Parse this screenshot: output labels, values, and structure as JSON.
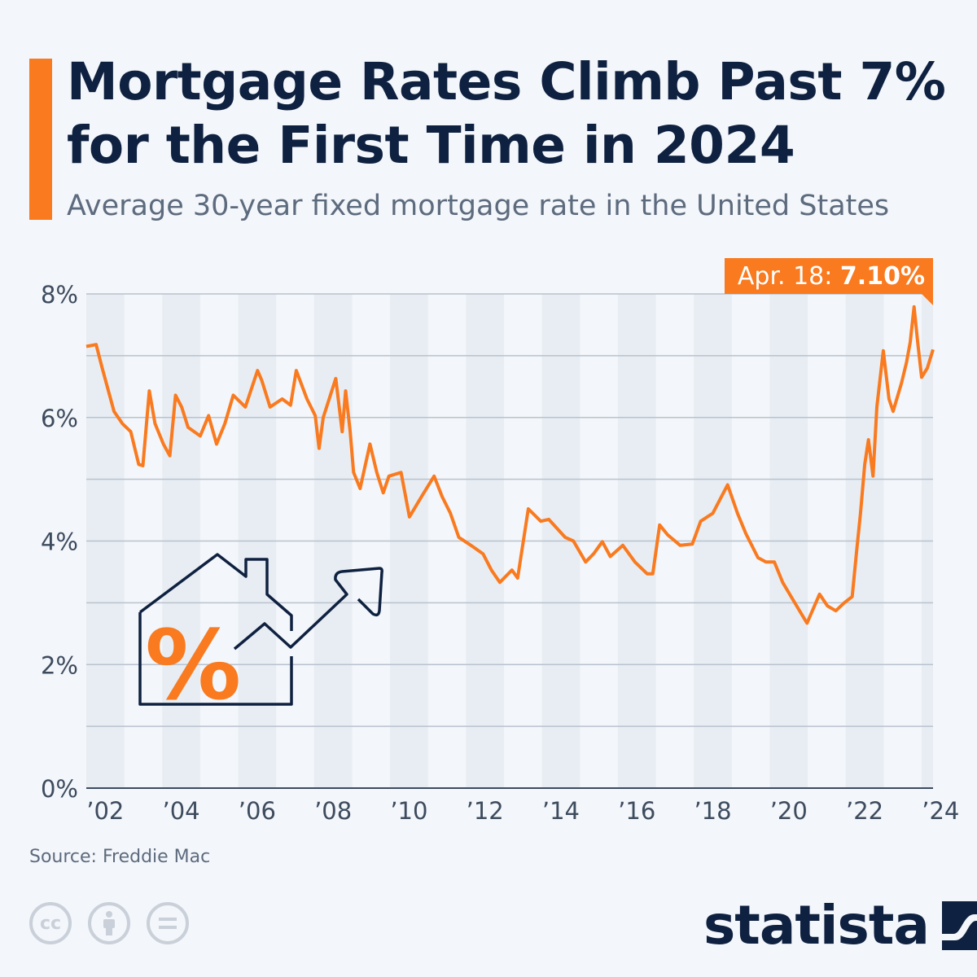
{
  "header": {
    "title": "Mortgage Rates Climb Past 7% for the First Time in 2024",
    "subtitle": "Average 30-year fixed mortgage rate in the United States"
  },
  "footer": {
    "source": "Source: Freddie Mac",
    "brand": "statista",
    "license_icons": [
      "cc-icon",
      "attribution-icon",
      "no-derivatives-icon"
    ]
  },
  "colors": {
    "accent": "#f97a1f",
    "title": "#0f2140",
    "background": "#f3f6fa",
    "band": "#e8edf3",
    "grid": "#b8c2ce"
  },
  "chart_data": {
    "type": "line",
    "title": "Mortgage Rates Climb Past 7% for the First Time in 2024",
    "subtitle": "Average 30-year fixed mortgage rate in the United States",
    "xlabel": "",
    "ylabel": "",
    "xlim": [
      2002,
      2024.3
    ],
    "ylim": [
      0,
      8
    ],
    "grid": true,
    "alternating_year_bands": true,
    "y_ticks": [
      "0%",
      "2%",
      "4%",
      "6%",
      "8%"
    ],
    "y_tick_values": [
      0,
      2,
      4,
      6,
      8
    ],
    "x_ticks": [
      "’02",
      "’04",
      "’06",
      "’08",
      "’10",
      "’12",
      "’14",
      "’16",
      "’18",
      "’20",
      "’22",
      "’24"
    ],
    "x_tick_values": [
      2002,
      2004,
      2006,
      2008,
      2010,
      2012,
      2014,
      2016,
      2018,
      2020,
      2022,
      2024
    ],
    "annotation": {
      "label": "Apr. 18: ",
      "value": "7.10%"
    },
    "series": [
      {
        "color": "#f97a1f",
        "points": [
          [
            2002.0,
            7.15
          ],
          [
            2002.26,
            7.18
          ],
          [
            2002.41,
            6.82
          ],
          [
            2002.73,
            6.1
          ],
          [
            2002.95,
            5.9
          ],
          [
            2003.17,
            5.77
          ],
          [
            2003.38,
            5.24
          ],
          [
            2003.49,
            5.22
          ],
          [
            2003.66,
            6.43
          ],
          [
            2003.81,
            5.9
          ],
          [
            2004.03,
            5.57
          ],
          [
            2004.2,
            5.38
          ],
          [
            2004.35,
            6.36
          ],
          [
            2004.51,
            6.17
          ],
          [
            2004.68,
            5.84
          ],
          [
            2005.0,
            5.7
          ],
          [
            2005.22,
            6.03
          ],
          [
            2005.43,
            5.57
          ],
          [
            2005.65,
            5.9
          ],
          [
            2005.87,
            6.36
          ],
          [
            2006.19,
            6.17
          ],
          [
            2006.51,
            6.76
          ],
          [
            2006.62,
            6.6
          ],
          [
            2006.84,
            6.17
          ],
          [
            2007.16,
            6.3
          ],
          [
            2007.38,
            6.2
          ],
          [
            2007.53,
            6.76
          ],
          [
            2007.81,
            6.3
          ],
          [
            2008.03,
            6.03
          ],
          [
            2008.13,
            5.5
          ],
          [
            2008.24,
            6.0
          ],
          [
            2008.57,
            6.63
          ],
          [
            2008.74,
            5.77
          ],
          [
            2008.83,
            6.43
          ],
          [
            2008.95,
            5.77
          ],
          [
            2009.04,
            5.11
          ],
          [
            2009.21,
            4.85
          ],
          [
            2009.47,
            5.57
          ],
          [
            2009.65,
            5.11
          ],
          [
            2009.82,
            4.78
          ],
          [
            2009.97,
            5.05
          ],
          [
            2010.29,
            5.11
          ],
          [
            2010.51,
            4.39
          ],
          [
            2010.83,
            4.72
          ],
          [
            2011.16,
            5.05
          ],
          [
            2011.37,
            4.72
          ],
          [
            2011.59,
            4.45
          ],
          [
            2011.81,
            4.06
          ],
          [
            2012.13,
            3.93
          ],
          [
            2012.45,
            3.79
          ],
          [
            2012.67,
            3.53
          ],
          [
            2012.89,
            3.33
          ],
          [
            2013.21,
            3.53
          ],
          [
            2013.36,
            3.4
          ],
          [
            2013.64,
            4.52
          ],
          [
            2013.97,
            4.32
          ],
          [
            2014.18,
            4.35
          ],
          [
            2014.61,
            4.06
          ],
          [
            2014.83,
            4.0
          ],
          [
            2015.15,
            3.66
          ],
          [
            2015.37,
            3.8
          ],
          [
            2015.59,
            3.99
          ],
          [
            2015.8,
            3.75
          ],
          [
            2016.13,
            3.93
          ],
          [
            2016.45,
            3.66
          ],
          [
            2016.77,
            3.47
          ],
          [
            2016.92,
            3.47
          ],
          [
            2017.1,
            4.26
          ],
          [
            2017.31,
            4.1
          ],
          [
            2017.64,
            3.93
          ],
          [
            2017.96,
            3.95
          ],
          [
            2018.18,
            4.32
          ],
          [
            2018.5,
            4.45
          ],
          [
            2018.89,
            4.91
          ],
          [
            2019.15,
            4.45
          ],
          [
            2019.37,
            4.12
          ],
          [
            2019.69,
            3.73
          ],
          [
            2019.9,
            3.66
          ],
          [
            2020.12,
            3.66
          ],
          [
            2020.34,
            3.33
          ],
          [
            2020.66,
            3.0
          ],
          [
            2020.98,
            2.67
          ],
          [
            2021.31,
            3.14
          ],
          [
            2021.52,
            2.95
          ],
          [
            2021.74,
            2.87
          ],
          [
            2021.96,
            3.0
          ],
          [
            2022.17,
            3.1
          ],
          [
            2022.28,
            3.79
          ],
          [
            2022.39,
            4.45
          ],
          [
            2022.5,
            5.24
          ],
          [
            2022.6,
            5.64
          ],
          [
            2022.72,
            5.05
          ],
          [
            2022.82,
            6.17
          ],
          [
            2022.99,
            7.08
          ],
          [
            2023.14,
            6.3
          ],
          [
            2023.25,
            6.1
          ],
          [
            2023.47,
            6.56
          ],
          [
            2023.6,
            6.89
          ],
          [
            2023.7,
            7.22
          ],
          [
            2023.8,
            7.79
          ],
          [
            2023.9,
            7.2
          ],
          [
            2024.0,
            6.65
          ],
          [
            2024.15,
            6.8
          ],
          [
            2024.3,
            7.1
          ]
        ]
      }
    ]
  }
}
